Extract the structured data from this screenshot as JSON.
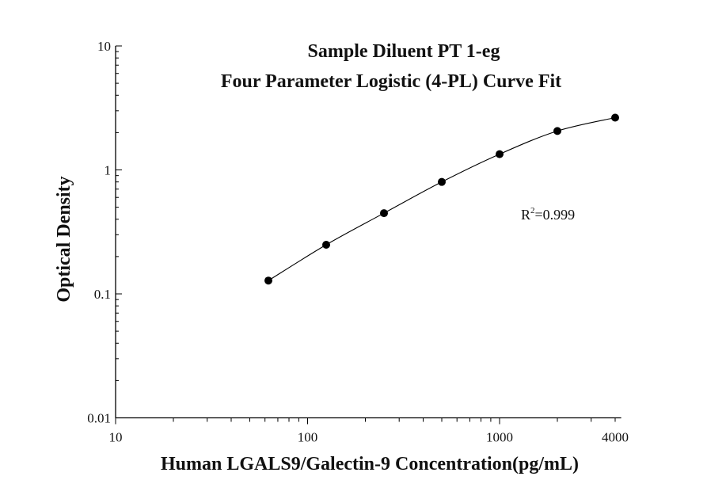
{
  "chart_data": {
    "type": "scatter",
    "title": [
      "Sample Diluent PT 1-eg",
      "Four Parameter Logistic (4-PL) Curve Fit"
    ],
    "xlabel": "Human LGALS9/Galectin-9 Concentration(pg/mL)",
    "ylabel": "Optical Density",
    "xscale": "log",
    "yscale": "log",
    "xlim": [
      10,
      4300
    ],
    "ylim": [
      0.01,
      10
    ],
    "xticks": [
      "10",
      "100",
      "1000",
      "4000"
    ],
    "yticks": [
      "10",
      "1",
      "0.1",
      "0.01"
    ],
    "grid": false,
    "fit": "4-PL curve",
    "annotation": {
      "base": "R",
      "sup": "2",
      "rest": "=0.999"
    },
    "x": [
      62.5,
      125,
      250,
      500,
      1000,
      2000,
      4000
    ],
    "y": [
      0.128,
      0.249,
      0.448,
      0.8,
      1.34,
      2.06,
      2.64
    ],
    "marker_color": "#000000",
    "line_color": "#000000"
  }
}
